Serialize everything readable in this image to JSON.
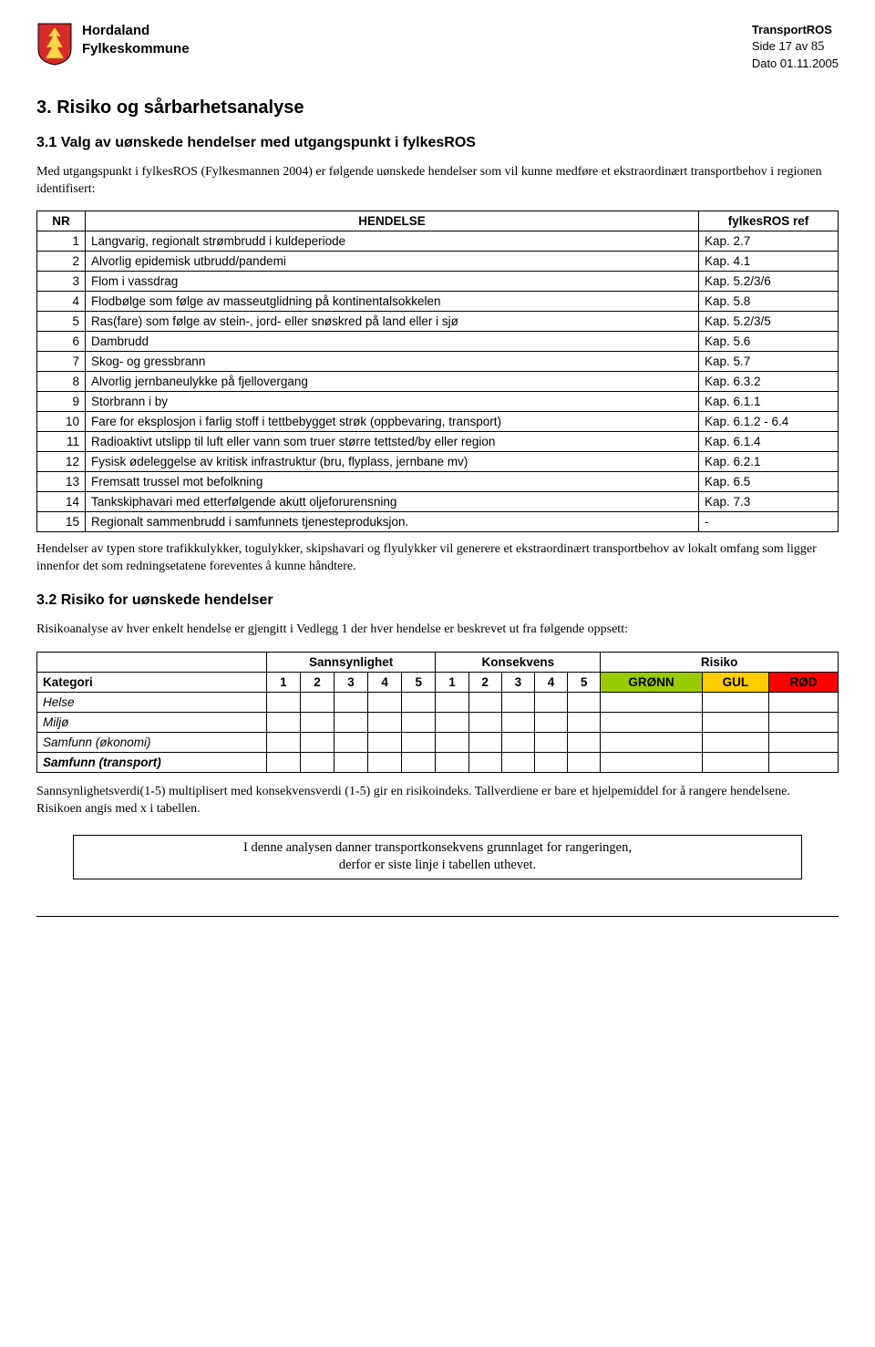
{
  "header": {
    "org1": "Hordaland",
    "org2": "Fylkeskommune",
    "doc": "TransportROS",
    "page_label": "Side 17 av ",
    "page_total": "85",
    "date": "Dato 01.11.2005"
  },
  "section": {
    "title": "3.   Risiko og sårbarhetsanalyse",
    "s31_title": "3.1   Valg av uønskede hendelser med utgangspunkt i fylkesROS",
    "s31_para": "Med utgangspunkt i fylkesROS (Fylkesmannen 2004) er følgende uønskede hendelser som vil kunne medføre et ekstraordinært transportbehov i regionen identifisert:",
    "s32_title": "3.2   Risiko for uønskede hendelser",
    "s32_para": "Risikoanalyse av hver enkelt hendelse er gjengitt i Vedlegg 1 der hver hendelse er beskrevet ut fra følgende oppsett:"
  },
  "table_main": {
    "col_nr": "NR",
    "col_hendelse": "HENDELSE",
    "col_ref": "fylkesROS ref",
    "rows": [
      {
        "nr": "1",
        "h": "Langvarig, regionalt strømbrudd i kuldeperiode",
        "ref": "Kap. 2.7"
      },
      {
        "nr": "2",
        "h": "Alvorlig epidemisk utbrudd/pandemi",
        "ref": "Kap. 4.1"
      },
      {
        "nr": "3",
        "h": "Flom i vassdrag",
        "ref": "Kap. 5.2/3/6"
      },
      {
        "nr": "4",
        "h": "Flodbølge som følge av masseutglidning på kontinentalsokkelen",
        "ref": "Kap. 5.8"
      },
      {
        "nr": "5",
        "h": "Ras(fare) som følge av stein-, jord- eller snøskred på land eller i sjø",
        "ref": "Kap. 5.2/3/5"
      },
      {
        "nr": "6",
        "h": "Dambrudd",
        "ref": "Kap. 5.6"
      },
      {
        "nr": "7",
        "h": "Skog- og gressbrann",
        "ref": "Kap. 5.7"
      },
      {
        "nr": "8",
        "h": "Alvorlig jernbaneulykke på fjellovergang",
        "ref": "Kap. 6.3.2"
      },
      {
        "nr": "9",
        "h": "Storbrann i by",
        "ref": "Kap. 6.1.1"
      },
      {
        "nr": "10",
        "h": "Fare for eksplosjon i farlig stoff i tettbebygget strøk (oppbevaring, transport)",
        "ref": "Kap. 6.1.2 - 6.4"
      },
      {
        "nr": "11",
        "h": "Radioaktivt utslipp til luft eller vann som truer større tettsted/by eller region",
        "ref": "Kap. 6.1.4"
      },
      {
        "nr": "12",
        "h": "Fysisk ødeleggelse av kritisk infrastruktur (bru, flyplass, jernbane mv)",
        "ref": "Kap. 6.2.1"
      },
      {
        "nr": "13",
        "h": "Fremsatt trussel mot befolkning",
        "ref": "Kap. 6.5"
      },
      {
        "nr": "14",
        "h": "Tankskiphavari med etterfølgende akutt oljeforurensning",
        "ref": "Kap. 7.3"
      },
      {
        "nr": "15",
        "h": "Regionalt sammenbrudd i samfunnets tjenesteproduksjon.",
        "ref": "-"
      }
    ]
  },
  "after_table_para": "Hendelser av typen store trafikkulykker, togulykker, skipshavari og flyulykker vil generere et ekstraordinært transportbehov av lokalt omfang som ligger innenfor det som redningsetatene foreventes å kunne håndtere.",
  "risk_table": {
    "h_sann": "Sannsynlighet",
    "h_kons": "Konsekvens",
    "h_risk": "Risiko",
    "kategori": "Kategori",
    "nums": [
      "1",
      "2",
      "3",
      "4",
      "5"
    ],
    "gronn": "GRØNN",
    "gul": "GUL",
    "rod": "RØD",
    "rows": [
      "Helse",
      "Miljø",
      "Samfunn (økonomi)",
      "Samfunn (transport)"
    ]
  },
  "colors": {
    "gronn": "#99cc00",
    "gul": "#ffcc00",
    "rod": "#ff0000"
  },
  "footer_para": "Sannsynlighetsverdi(1-5) multiplisert med konsekvensverdi (1-5) gir en risikoindeks. Tallverdiene er bare et hjelpemiddel for å rangere hendelsene. Risikoen angis med x i tabellen.",
  "note_box": {
    "line1": "I denne analysen danner transportkonsekvens grunnlaget for rangeringen,",
    "line2": "derfor er siste linje i tabellen uthevet."
  }
}
